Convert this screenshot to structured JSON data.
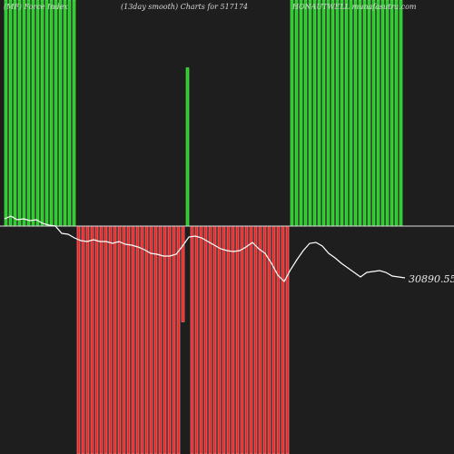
{
  "header": {
    "left": "(MF) Force Index",
    "center": "(13day smooth) Charts for 517174",
    "right": "HONAUTWELL munafasutra.com"
  },
  "colors": {
    "background": "#1e1e1e",
    "bull": "#22cc22",
    "bull_edge": "#66ee66",
    "bear": "#ee2222",
    "bear_edge": "#ff9999",
    "zero_line": "#dddddd",
    "price_line": "#ffffff"
  },
  "chart_data": {
    "type": "bar",
    "title": "(13day smooth) Charts for 517174",
    "subtitle": "(MF) Force Index",
    "source": "HONAUTWELL munafasutra.com",
    "last_price_label": "30890.55",
    "bars": [
      1,
      1,
      1,
      1,
      1,
      1,
      1,
      1,
      1,
      1,
      1,
      1,
      1,
      1,
      1,
      1,
      -1,
      -1,
      -1,
      -1,
      -1,
      -1,
      -1,
      -1,
      -1,
      -1,
      -1,
      -1,
      -1,
      -1,
      -1,
      -1,
      -1,
      -1,
      -1,
      -1,
      -1,
      -1,
      -1,
      -0.42,
      0.7,
      -1,
      -1,
      -1,
      -1,
      -1,
      -1,
      -1,
      -1,
      -1,
      -1,
      -1,
      -1,
      -1,
      -1,
      -1,
      -1,
      -1,
      -1,
      -1,
      -1,
      -1,
      -1,
      1,
      1,
      1,
      1,
      1,
      1,
      1,
      1,
      1,
      1,
      1,
      1,
      1,
      1,
      1,
      1,
      1,
      1,
      1,
      1,
      1,
      1,
      1,
      1,
      1
    ],
    "price_line": [
      241,
      238,
      242,
      241,
      243,
      242,
      246,
      248,
      249,
      257,
      258,
      262,
      265,
      266,
      264,
      266,
      266,
      268,
      266,
      269,
      270,
      272,
      275,
      279,
      280,
      282,
      282,
      280,
      271,
      261,
      260,
      262,
      266,
      270,
      274,
      276,
      277,
      276,
      272,
      267,
      274,
      279,
      290,
      303,
      310,
      297,
      286,
      276,
      268,
      267,
      271,
      279,
      284,
      290,
      295,
      300,
      305,
      300,
      299,
      298,
      300,
      304,
      305,
      306
    ],
    "price_range": [
      230,
      315
    ]
  }
}
